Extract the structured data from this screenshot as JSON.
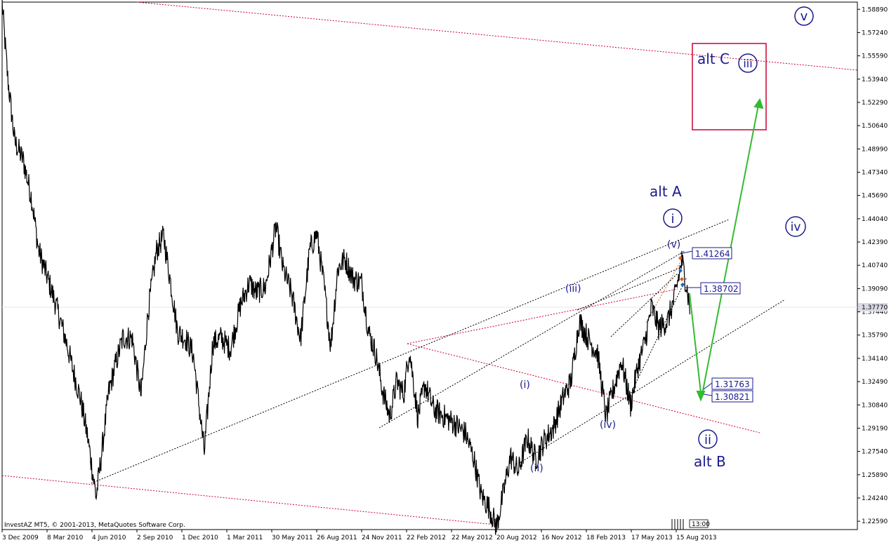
{
  "chart_data": {
    "type": "line",
    "copyright": "InvestAZ MT5, © 2001-2013, MetaQuotes Software Corp.",
    "timeframe_badge": "13:00",
    "ylim": [
      1.22,
      1.594
    ],
    "y_ticks": [
      "1.58890",
      "1.57240",
      "1.55590",
      "1.53940",
      "1.52290",
      "1.50640",
      "1.48990",
      "1.47340",
      "1.45690",
      "1.44040",
      "1.42390",
      "1.40740",
      "1.39090",
      "1.37440",
      "1.35790",
      "1.34140",
      "1.32490",
      "1.30840",
      "1.29190",
      "1.27540",
      "1.25890",
      "1.24240",
      "1.22590"
    ],
    "current_price_label": "1.37770",
    "x_ticks": [
      "3 Dec 2009",
      "8 Mar 2010",
      "4 Jun 2010",
      "2 Sep 2010",
      "1 Dec 2010",
      "1 Mar 2011",
      "30 May 2011",
      "26 Aug 2011",
      "24 Nov 2011",
      "22 Feb 2012",
      "22 May 2012",
      "20 Aug 2012",
      "16 Nov 2012",
      "18 Feb 2013",
      "17 May 2013",
      "15 Aug 2013"
    ],
    "series": [
      {
        "points": [
          [
            0,
            1.593
          ],
          [
            8,
            1.54
          ],
          [
            18,
            1.495
          ],
          [
            30,
            1.482
          ],
          [
            42,
            1.455
          ],
          [
            52,
            1.418
          ],
          [
            65,
            1.398
          ],
          [
            78,
            1.377
          ],
          [
            92,
            1.352
          ],
          [
            100,
            1.335
          ],
          [
            112,
            1.312
          ],
          [
            122,
            1.285
          ],
          [
            134,
            1.243
          ],
          [
            142,
            1.275
          ],
          [
            152,
            1.318
          ],
          [
            162,
            1.338
          ],
          [
            172,
            1.356
          ],
          [
            185,
            1.356
          ],
          [
            198,
            1.315
          ],
          [
            208,
            1.375
          ],
          [
            220,
            1.418
          ],
          [
            230,
            1.428
          ],
          [
            240,
            1.395
          ],
          [
            250,
            1.36
          ],
          [
            262,
            1.355
          ],
          [
            272,
            1.345
          ],
          [
            288,
            1.275
          ],
          [
            300,
            1.352
          ],
          [
            312,
            1.356
          ],
          [
            325,
            1.348
          ],
          [
            340,
            1.38
          ],
          [
            352,
            1.395
          ],
          [
            362,
            1.388
          ],
          [
            375,
            1.392
          ],
          [
            390,
            1.435
          ],
          [
            400,
            1.405
          ],
          [
            412,
            1.388
          ],
          [
            425,
            1.355
          ],
          [
            438,
            1.418
          ],
          [
            448,
            1.43
          ],
          [
            458,
            1.395
          ],
          [
            468,
            1.35
          ],
          [
            478,
            1.405
          ],
          [
            488,
            1.412
          ],
          [
            500,
            1.398
          ],
          [
            512,
            1.395
          ],
          [
            522,
            1.36
          ],
          [
            532,
            1.345
          ],
          [
            542,
            1.318
          ],
          [
            552,
            1.3
          ],
          [
            562,
            1.325
          ],
          [
            572,
            1.316
          ],
          [
            580,
            1.348
          ],
          [
            592,
            1.3
          ],
          [
            602,
            1.323
          ],
          [
            615,
            1.305
          ],
          [
            630,
            1.3
          ],
          [
            645,
            1.295
          ],
          [
            660,
            1.288
          ],
          [
            672,
            1.27
          ],
          [
            682,
            1.245
          ],
          [
            694,
            1.235
          ],
          [
            704,
            1.222
          ],
          [
            714,
            1.246
          ],
          [
            724,
            1.272
          ],
          [
            735,
            1.261
          ],
          [
            748,
            1.285
          ],
          [
            760,
            1.27
          ],
          [
            772,
            1.283
          ],
          [
            785,
            1.292
          ],
          [
            800,
            1.315
          ],
          [
            810,
            1.325
          ],
          [
            822,
            1.368
          ],
          [
            835,
            1.355
          ],
          [
            848,
            1.345
          ],
          [
            860,
            1.3
          ],
          [
            872,
            1.322
          ],
          [
            882,
            1.34
          ],
          [
            895,
            1.308
          ],
          [
            905,
            1.335
          ],
          [
            915,
            1.352
          ],
          [
            925,
            1.378
          ],
          [
            935,
            1.363
          ],
          [
            948,
            1.368
          ],
          [
            958,
            1.385
          ],
          [
            968,
            1.411
          ],
          [
            975,
            1.392
          ],
          [
            980,
            1.375
          ]
        ]
      }
    ],
    "level_labels": [
      {
        "text": "1.41264",
        "value": 1.41264
      },
      {
        "text": "1.38702",
        "value": 1.38702
      },
      {
        "text": "1.31763",
        "value": 1.31763
      },
      {
        "text": "1.30821",
        "value": 1.30821
      }
    ],
    "wave_labels": {
      "i_minor": "(i)",
      "ii_minor": "(ii)",
      "iii_minor": "(iii)",
      "iv_minor": "(iv)",
      "v_minor": "(v)",
      "i": "i",
      "ii": "ii",
      "iii": "iii",
      "iv": "iv",
      "v": "v",
      "alt_a": "alt A",
      "alt_b": "alt B",
      "alt_c": "alt C"
    },
    "colors": {
      "price": "#000000",
      "channel_black": "#000000",
      "channel_red": "#cc0033",
      "projection": "#33bb33",
      "target_box": "#cc0033",
      "wave_text": "#1a1a8c"
    }
  }
}
